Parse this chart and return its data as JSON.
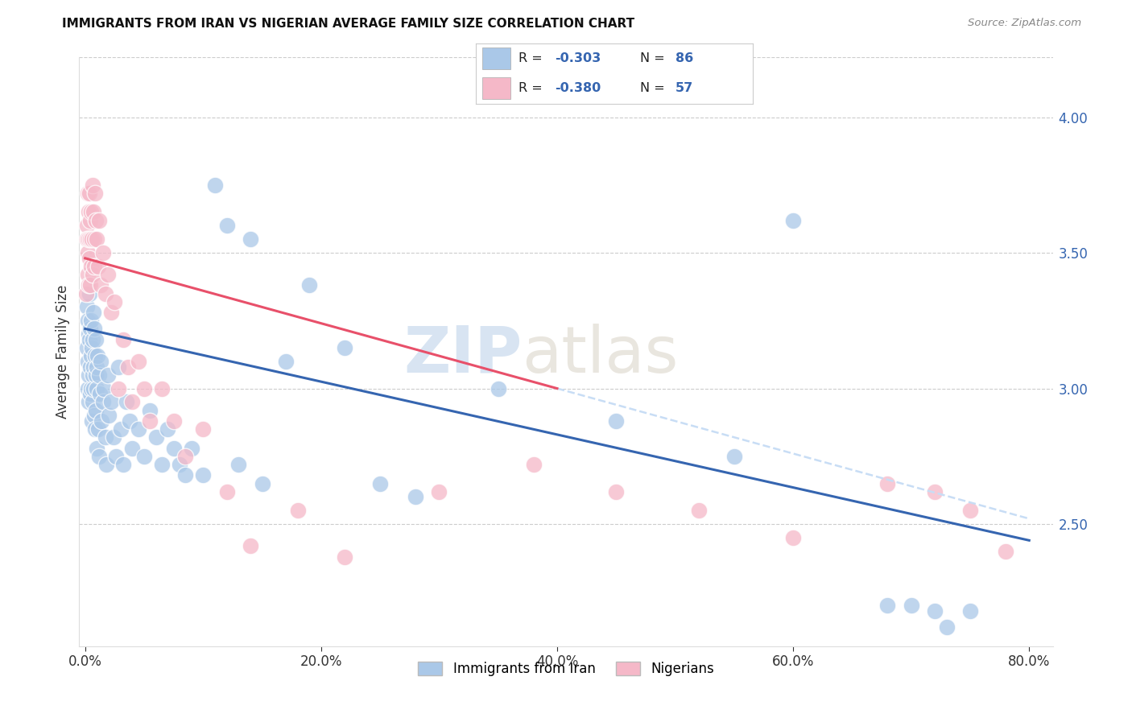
{
  "title": "IMMIGRANTS FROM IRAN VS NIGERIAN AVERAGE FAMILY SIZE CORRELATION CHART",
  "source": "Source: ZipAtlas.com",
  "ylabel": "Average Family Size",
  "xlabel_ticks": [
    "0.0%",
    "20.0%",
    "40.0%",
    "60.0%",
    "80.0%"
  ],
  "xlabel_vals": [
    0.0,
    20.0,
    40.0,
    60.0,
    80.0
  ],
  "yright_ticks": [
    2.5,
    3.0,
    3.5,
    4.0
  ],
  "ylim": [
    2.05,
    4.22
  ],
  "xlim": [
    -0.5,
    82.0
  ],
  "iran_color": "#aac8e8",
  "nigeria_color": "#f5b8c8",
  "trend_blue": "#3565b0",
  "trend_pink": "#e8506a",
  "trend_dashed_color": "#c8ddf5",
  "watermark_zip": "ZIP",
  "watermark_atlas": "atlas",
  "legend_label_iran": "Immigrants from Iran",
  "legend_label_nigeria": "Nigerians",
  "blue_trend_x0": 0.0,
  "blue_trend_y0": 3.22,
  "blue_trend_x1": 80.0,
  "blue_trend_y1": 2.44,
  "pink_trend_x0": 0.0,
  "pink_trend_y0": 3.48,
  "pink_trend_x1": 80.0,
  "pink_trend_y1": 2.52,
  "pink_solid_end": 40.0,
  "iran_x": [
    0.15,
    0.18,
    0.2,
    0.22,
    0.25,
    0.28,
    0.3,
    0.32,
    0.35,
    0.38,
    0.4,
    0.42,
    0.45,
    0.48,
    0.5,
    0.52,
    0.55,
    0.58,
    0.6,
    0.62,
    0.65,
    0.68,
    0.7,
    0.72,
    0.75,
    0.8,
    0.82,
    0.85,
    0.88,
    0.9,
    0.92,
    0.95,
    0.98,
    1.0,
    1.05,
    1.1,
    1.15,
    1.2,
    1.25,
    1.3,
    1.4,
    1.5,
    1.6,
    1.7,
    1.8,
    1.9,
    2.0,
    2.2,
    2.4,
    2.6,
    2.8,
    3.0,
    3.2,
    3.5,
    3.8,
    4.0,
    4.5,
    5.0,
    5.5,
    6.0,
    6.5,
    7.0,
    7.5,
    8.0,
    8.5,
    9.0,
    10.0,
    11.0,
    12.0,
    13.0,
    14.0,
    15.0,
    17.0,
    19.0,
    22.0,
    25.0,
    28.0,
    35.0,
    45.0,
    55.0,
    60.0,
    68.0,
    70.0,
    72.0,
    73.0,
    75.0
  ],
  "iran_y": [
    3.3,
    3.15,
    3.0,
    3.25,
    3.1,
    2.95,
    3.2,
    3.05,
    3.35,
    3.18,
    3.08,
    3.22,
    2.98,
    3.12,
    3.0,
    3.25,
    3.15,
    2.88,
    3.05,
    3.18,
    2.95,
    3.08,
    3.28,
    3.0,
    2.9,
    3.22,
    3.12,
    2.85,
    3.05,
    3.18,
    2.92,
    3.08,
    2.78,
    3.0,
    3.12,
    2.85,
    3.05,
    2.75,
    2.98,
    3.1,
    2.88,
    2.95,
    3.0,
    2.82,
    2.72,
    3.05,
    2.9,
    2.95,
    2.82,
    2.75,
    3.08,
    2.85,
    2.72,
    2.95,
    2.88,
    2.78,
    2.85,
    2.75,
    2.92,
    2.82,
    2.72,
    2.85,
    2.78,
    2.72,
    2.68,
    2.78,
    2.68,
    3.75,
    3.6,
    2.72,
    3.55,
    2.65,
    3.1,
    3.38,
    3.15,
    2.65,
    2.6,
    3.0,
    2.88,
    2.75,
    3.62,
    2.2,
    2.2,
    2.18,
    2.12,
    2.18
  ],
  "nigeria_x": [
    0.1,
    0.15,
    0.18,
    0.2,
    0.22,
    0.25,
    0.28,
    0.3,
    0.32,
    0.35,
    0.38,
    0.4,
    0.42,
    0.45,
    0.48,
    0.5,
    0.55,
    0.6,
    0.65,
    0.7,
    0.75,
    0.8,
    0.85,
    0.9,
    1.0,
    1.1,
    1.2,
    1.3,
    1.5,
    1.7,
    1.9,
    2.2,
    2.5,
    2.8,
    3.2,
    3.6,
    4.0,
    4.5,
    5.0,
    5.5,
    6.5,
    7.5,
    8.5,
    10.0,
    12.0,
    14.0,
    18.0,
    22.0,
    30.0,
    38.0,
    45.0,
    52.0,
    60.0,
    68.0,
    72.0,
    75.0,
    78.0
  ],
  "nigeria_y": [
    3.35,
    3.6,
    3.55,
    3.42,
    3.72,
    3.5,
    3.38,
    3.65,
    3.55,
    3.48,
    3.72,
    3.62,
    3.38,
    3.55,
    3.45,
    3.65,
    3.55,
    3.42,
    3.75,
    3.65,
    3.55,
    3.45,
    3.72,
    3.62,
    3.55,
    3.45,
    3.62,
    3.38,
    3.5,
    3.35,
    3.42,
    3.28,
    3.32,
    3.0,
    3.18,
    3.08,
    2.95,
    3.1,
    3.0,
    2.88,
    3.0,
    2.88,
    2.75,
    2.85,
    2.62,
    2.42,
    2.55,
    2.38,
    2.62,
    2.72,
    2.62,
    2.55,
    2.45,
    2.65,
    2.62,
    2.55,
    2.4
  ]
}
